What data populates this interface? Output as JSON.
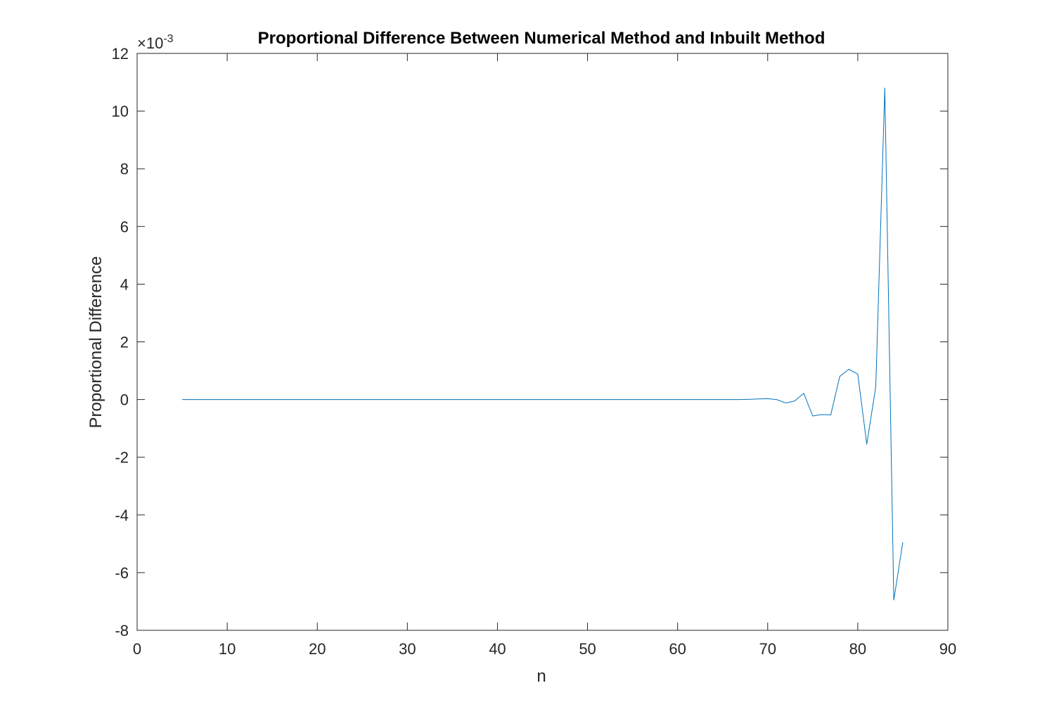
{
  "chart_data": {
    "type": "line",
    "title": "Proportional Difference Between Numerical Method and Inbuilt Method",
    "xlabel": "n",
    "ylabel": "Proportional Difference",
    "y_exponent_label": {
      "base": "×10",
      "exponent": "-3"
    },
    "xlim": [
      0,
      90
    ],
    "ylim": [
      -8,
      12
    ],
    "xticks": [
      0,
      10,
      20,
      30,
      40,
      50,
      60,
      70,
      80,
      90
    ],
    "yticks": [
      -8,
      -6,
      -4,
      -2,
      0,
      2,
      4,
      6,
      8,
      10,
      12
    ],
    "grid": false,
    "box": true,
    "line_color": "#0072BD",
    "series": [
      {
        "x": [
          5,
          6,
          7,
          8,
          9,
          10,
          11,
          12,
          13,
          14,
          15,
          16,
          17,
          18,
          19,
          20,
          21,
          22,
          23,
          24,
          25,
          26,
          27,
          28,
          29,
          30,
          31,
          32,
          33,
          34,
          35,
          36,
          37,
          38,
          39,
          40,
          41,
          42,
          43,
          44,
          45,
          46,
          47,
          48,
          49,
          50,
          51,
          52,
          53,
          54,
          55,
          56,
          57,
          58,
          59,
          60,
          61,
          62,
          63,
          64,
          65,
          66,
          67,
          68,
          69,
          70,
          71,
          72,
          73,
          74,
          75,
          76,
          77,
          78,
          79,
          80,
          81,
          82,
          83,
          84,
          85
        ],
        "values": [
          0,
          0,
          0,
          0,
          0,
          0,
          0,
          0,
          0,
          0,
          0,
          0,
          0,
          0,
          0,
          0,
          0,
          0,
          0,
          0,
          0,
          0,
          0,
          0,
          0,
          0,
          0,
          0,
          0,
          0,
          0,
          0,
          0,
          0,
          0,
          0,
          0,
          0,
          0,
          0,
          0,
          0,
          0,
          0,
          0,
          0,
          0,
          0,
          0,
          0,
          0,
          0,
          0,
          0,
          0,
          0,
          0,
          0,
          0,
          0,
          0,
          0,
          0,
          0.01,
          0.02,
          0.03,
          0.0,
          -0.12,
          -0.05,
          0.22,
          -0.57,
          -0.52,
          -0.53,
          0.8,
          1.05,
          0.88,
          -1.55,
          0.45,
          10.8,
          -6.95,
          -4.95
        ]
      }
    ]
  }
}
